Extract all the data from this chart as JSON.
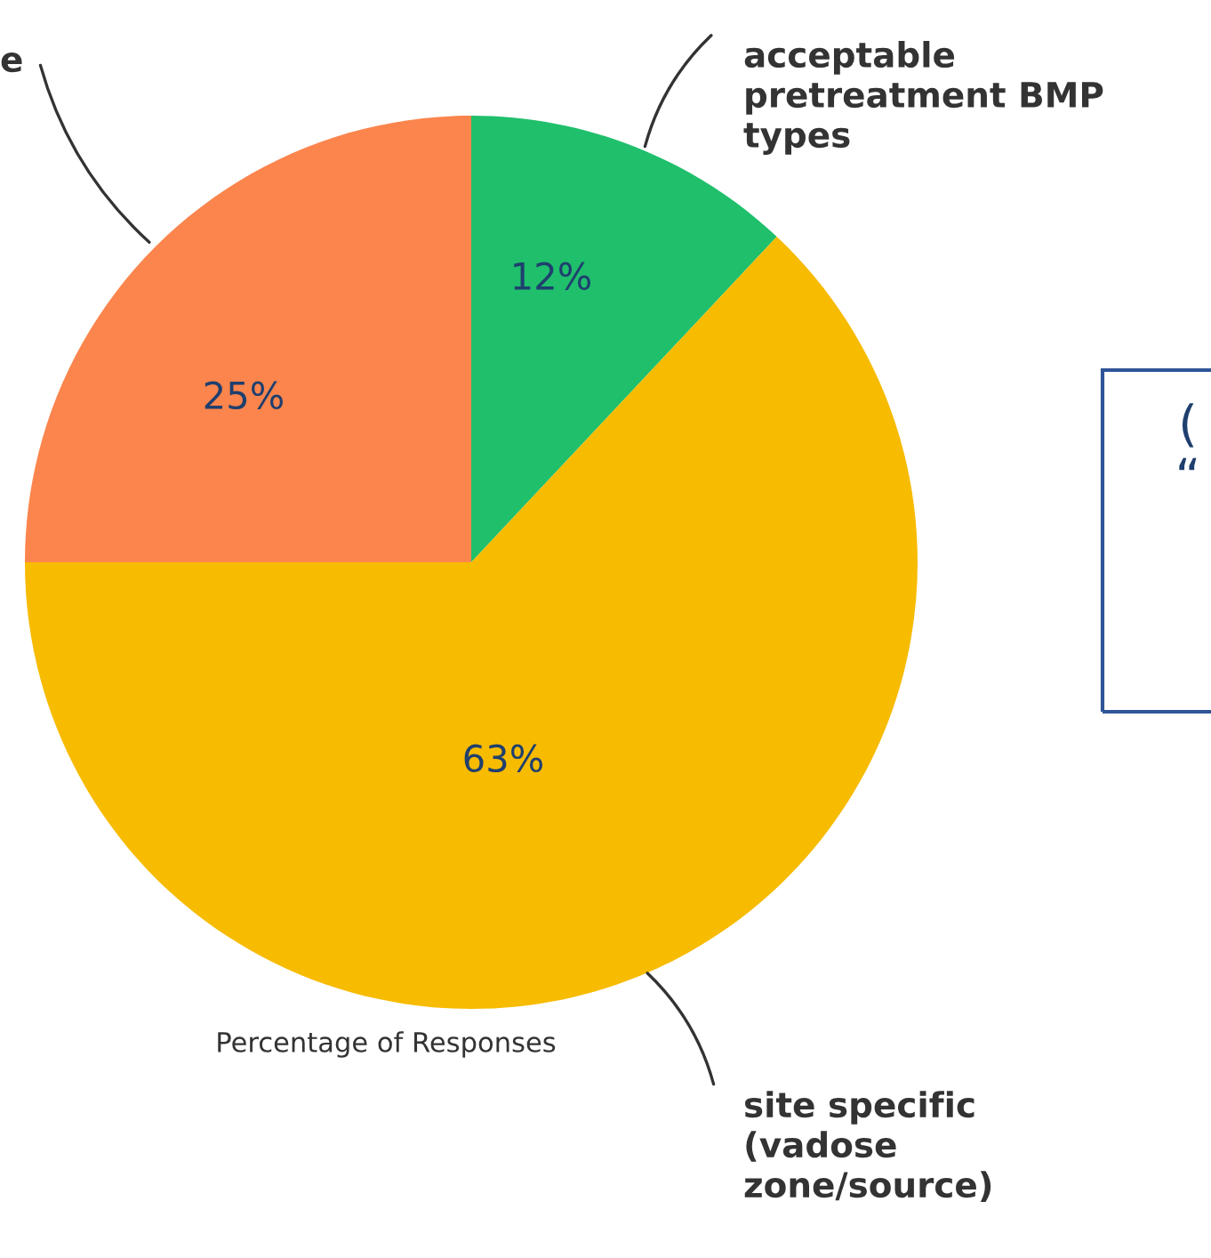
{
  "chart_data": {
    "type": "pie",
    "categories": [
      "acceptable\npretreatment BMP\ntypes",
      "site specific\n(vadose\nzone/source)",
      "e"
    ],
    "values": [
      12,
      63,
      25
    ],
    "colors": [
      "#1fbf6c",
      "#f7bb00",
      "#fb854d"
    ],
    "value_labels": [
      "12%",
      "63%",
      "25%"
    ],
    "annotations": [
      "Percentage of Responses",
      "(",
      "“"
    ],
    "legend": false
  }
}
